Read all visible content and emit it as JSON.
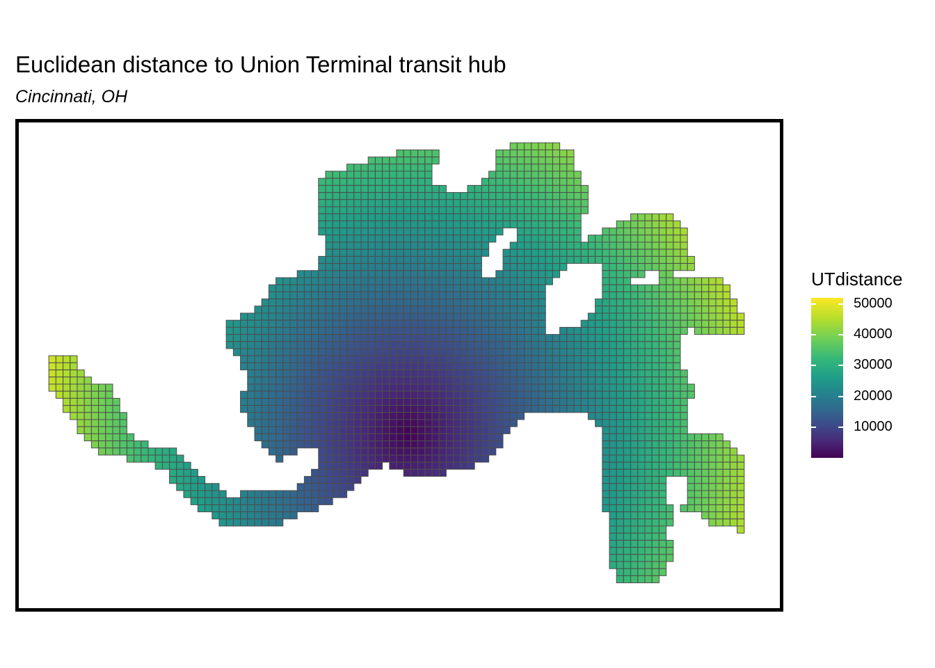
{
  "title": "Euclidean distance to Union Terminal transit hub",
  "subtitle": "Cincinnati, OH",
  "legend": {
    "title": "UTdistance",
    "ticks": [
      "50000",
      "40000",
      "30000",
      "20000",
      "10000"
    ],
    "tick_values": [
      50000,
      40000,
      30000,
      20000,
      10000
    ],
    "range": [
      0,
      52000
    ]
  },
  "colors": {
    "cell_border": "#4d4d4d",
    "frame": "#000000",
    "viridis": [
      "#440154",
      "#482878",
      "#3e4989",
      "#31688e",
      "#26828e",
      "#1f9e89",
      "#35b779",
      "#6ece58",
      "#b5de2b",
      "#fde725"
    ]
  },
  "map": {
    "type": "grid choropleth",
    "variable": "UTdistance",
    "hub_label": "Union Terminal transit hub"
  }
}
